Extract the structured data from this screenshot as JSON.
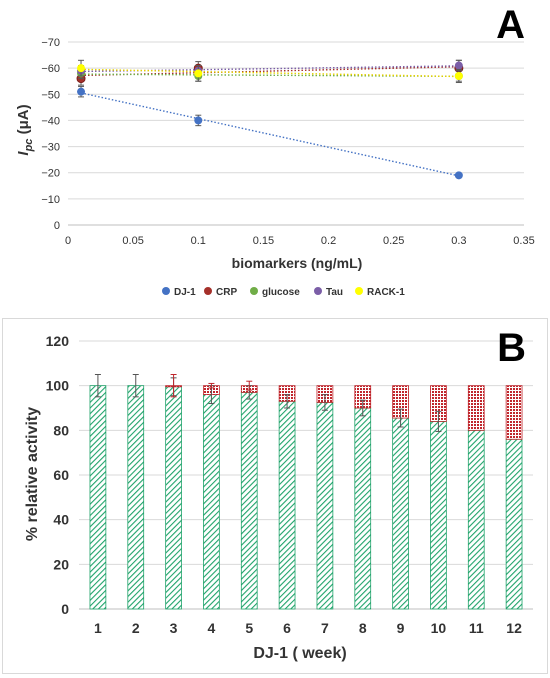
{
  "panel_a": {
    "label": "A",
    "chart_data": {
      "type": "scatter",
      "xlabel": "biomarkers (ng/mL)",
      "ylabel_main": "I",
      "ylabel_sub": "pc",
      "ylabel_unit": " (μA)",
      "xlim": [
        0,
        0.35
      ],
      "ylim": [
        0,
        -70
      ],
      "x_ticks": [
        "0",
        "0.05",
        "0.1",
        "0.15",
        "0.2",
        "0.25",
        "0.3",
        "0.35"
      ],
      "y_ticks": [
        "0",
        "−10",
        "−20",
        "−30",
        "−40",
        "−50",
        "−60",
        "−70"
      ],
      "grid": "horizontal",
      "legend_position": "bottom",
      "series": [
        {
          "name": "DJ-1",
          "color": "#4472c4",
          "x": [
            0.01,
            0.1,
            0.3
          ],
          "y": [
            -51,
            -40,
            -19
          ],
          "err": [
            2,
            2,
            0.5
          ]
        },
        {
          "name": "CRP",
          "color": "#a5302a",
          "x": [
            0.01,
            0.1,
            0.3
          ],
          "y": [
            -56,
            -60,
            -60
          ],
          "err": [
            2.5,
            2.5,
            3
          ]
        },
        {
          "name": "glucose",
          "color": "#70ad47",
          "x": [
            0.01,
            0.1,
            0.3
          ],
          "y": [
            -58,
            -57,
            -57
          ],
          "err": [
            2,
            2,
            2
          ]
        },
        {
          "name": "Tau",
          "color": "#7b5ea7",
          "x": [
            0.01,
            0.1,
            0.3
          ],
          "y": [
            -59,
            -59,
            -61
          ],
          "err": [
            2,
            2,
            2
          ]
        },
        {
          "name": "RACK-1",
          "color": "#ffff00",
          "x": [
            0.01,
            0.1,
            0.3
          ],
          "y": [
            -60,
            -58,
            -57
          ],
          "err": [
            3,
            3,
            2.5
          ]
        }
      ]
    }
  },
  "panel_b": {
    "label": "B",
    "chart_data": {
      "type": "bar",
      "stacked": true,
      "xlabel": "DJ-1 ( week)",
      "ylabel": "% relative activity",
      "ylim": [
        0,
        120
      ],
      "y_ticks": [
        "0",
        "20",
        "40",
        "60",
        "80",
        "100",
        "120"
      ],
      "categories": [
        "1",
        "2",
        "3",
        "4",
        "5",
        "6",
        "7",
        "8",
        "9",
        "10",
        "11",
        "12"
      ],
      "grid": "horizontal",
      "series": [
        {
          "color": "#1fa36a",
          "pattern": "diagonal-lines",
          "values": [
            100,
            100,
            99.5,
            96,
            97,
            93,
            92.5,
            90,
            85.5,
            84,
            80,
            76
          ],
          "err": [
            5,
            5,
            4,
            4,
            3,
            3,
            3.5,
            3.5,
            4,
            4.5,
            0,
            0
          ]
        },
        {
          "color": "#c0272d",
          "pattern": "dots",
          "values": [
            0,
            0,
            0.5,
            4,
            3,
            7,
            7.5,
            10,
            14.5,
            16,
            20,
            24
          ],
          "err": [
            0,
            0,
            5,
            1,
            2,
            0,
            0,
            0,
            0,
            0,
            0,
            0
          ]
        }
      ]
    }
  }
}
